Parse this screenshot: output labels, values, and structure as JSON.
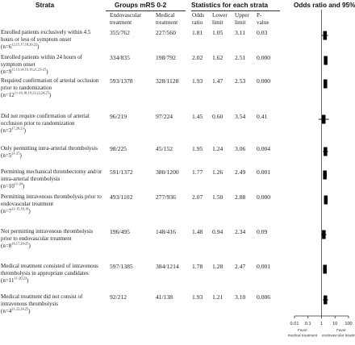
{
  "headers": {
    "strata": "Strata",
    "groups": "Groups mRS 0-2",
    "stats": "Statistics for each strata",
    "plot": "Odds ratio and 95% CI"
  },
  "columns": {
    "endovascular": "Endovascular\ntreatment",
    "medical": "Medical\ntreatment",
    "odds": "Odds\nratio",
    "lower": "Lower\nlimit",
    "upper": "Upper\nlimit",
    "p": "P-\nvalue"
  },
  "axis": {
    "ticks": [
      "0.01",
      "0.1",
      "1",
      "10",
      "100"
    ],
    "left_label": "Favor\nmedical treatment",
    "right_label": "Favor\nendovascular treatment"
  },
  "colors": {
    "marker": "#000000",
    "line": "#333333",
    "text": "#1a1a1a"
  },
  "chart_data": {
    "type": "forest",
    "title": "Odds ratio and 95% CI",
    "x_scale": "log",
    "xlim": [
      0.01,
      100
    ],
    "reference_line": 1,
    "rows": [
      {
        "label": "Enrolled patients exclusively within 4.5 hours or less of symptom onset",
        "n": "n=6",
        "refs": "12,15,17,18,20,22",
        "endo": "355/762",
        "med": "227/560",
        "or": 1.81,
        "lower": 1.05,
        "upper": 3.11,
        "p": "0.03"
      },
      {
        "label": "Enrolled patients within 24 hours of symptom onset",
        "n": "n=9",
        "refs": "11,13,14,16,19,21,23-25",
        "endo": "334/835",
        "med": "198/792",
        "or": 2.02,
        "lower": 1.62,
        "upper": 2.51,
        "p": "0.000"
      },
      {
        "label": "Required confirmation of arterial occlusion prior to randomization",
        "n": "n=12",
        "refs": "11-16,18,19,21,22,24,25",
        "endo": "593/1378",
        "med": "328/1128",
        "or": 1.93,
        "lower": 1.47,
        "upper": 2.53,
        "p": "0.000"
      },
      {
        "label": "Did not require confirmation of arterial occlusion prior to randomization",
        "n": "n=3",
        "refs": "17,20,23",
        "endo": "96/219",
        "med": "97/224",
        "or": 1.45,
        "lower": 0.6,
        "upper": 3.54,
        "p": "0.41"
      },
      {
        "label": "Only permitting intra-arterial thrombolysis",
        "n": "n=5",
        "refs": "21-25",
        "endo": "98/225",
        "med": "45/152",
        "or": 1.95,
        "lower": 1.24,
        "upper": 3.06,
        "p": "0.004"
      },
      {
        "label": "Permitting mechanical thrombectomy and/or intra-arterial thrombolysis",
        "n": "n=10",
        "refs": "11-20",
        "endo": "591/1372",
        "med": "380/1200",
        "or": 1.77,
        "lower": 1.26,
        "upper": 2.49,
        "p": "0.001"
      },
      {
        "label": "Permitting intravenous thrombolysis prior to endovascular treatment",
        "n": "n=7",
        "refs": "11-15,18,19",
        "endo": "493/1102",
        "med": "277/936",
        "or": 2.07,
        "lower": 1.5,
        "upper": 2.88,
        "p": "0.000"
      },
      {
        "label": "Not permitting intravenous thrombolysis prior to endovascular treatment",
        "n": "n=8",
        "refs": "16,17,20-25",
        "endo": "196/495",
        "med": "148/416",
        "or": 1.48,
        "lower": 0.94,
        "upper": 2.34,
        "p": "0.09"
      },
      {
        "label": "Medical treatment consisted of intravenous thrombolysis in appropriate candidates",
        "n": "n=11",
        "refs": "11-20,23",
        "endo": "597/1385",
        "med": "384/1214",
        "or": 1.78,
        "lower": 1.28,
        "upper": 2.47,
        "p": "0.001"
      },
      {
        "label": "Medical treatment did not consist of intravenous thrombolysis",
        "n": "n=4",
        "refs": "21,22,24,25",
        "endo": "92/212",
        "med": "41/138",
        "or": 1.93,
        "lower": 1.21,
        "upper": 3.1,
        "p": "0.006"
      }
    ]
  }
}
